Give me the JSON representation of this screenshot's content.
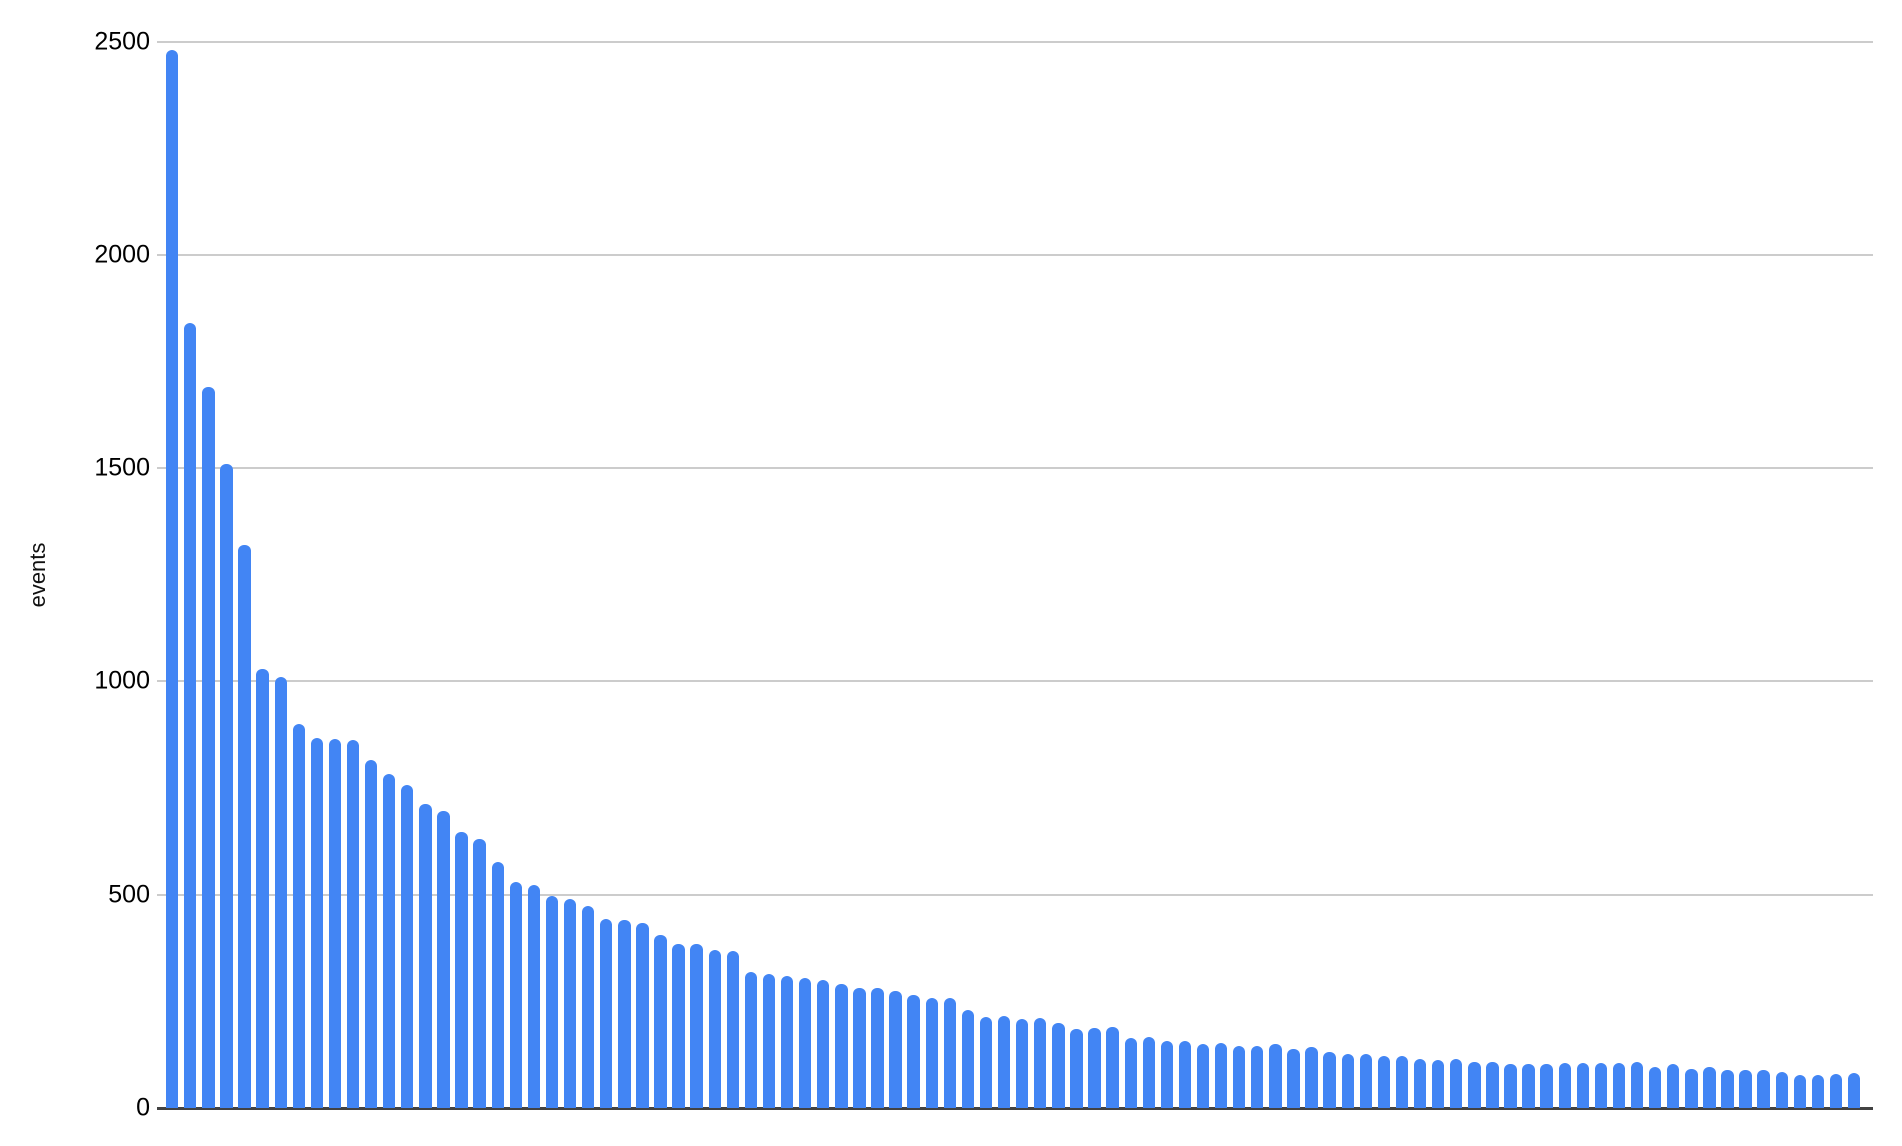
{
  "chart_data": {
    "type": "bar",
    "title": "",
    "xlabel": "",
    "ylabel": "events",
    "ylim": [
      0,
      2500
    ],
    "y_ticks": [
      0,
      500,
      1000,
      1500,
      2000,
      2500
    ],
    "grid": true,
    "legend_position": "none",
    "x_tick_labels": "none (bars unlabeled)",
    "values": [
      2480,
      1840,
      1690,
      1510,
      1320,
      1030,
      1010,
      900,
      868,
      865,
      863,
      815,
      783,
      758,
      713,
      697,
      646,
      630,
      576,
      530,
      523,
      496,
      491,
      473,
      443,
      440,
      434,
      406,
      385,
      384,
      370,
      369,
      320,
      314,
      309,
      305,
      301,
      291,
      282,
      281,
      275,
      266,
      257,
      258,
      230,
      214,
      215,
      209,
      210,
      200,
      186,
      188,
      189,
      164,
      166,
      156,
      158,
      150,
      152,
      145,
      146,
      149,
      139,
      142,
      132,
      127,
      127,
      121,
      123,
      115,
      112,
      114,
      108,
      107,
      104,
      104,
      104,
      106,
      106,
      106,
      106,
      107,
      96,
      104,
      92,
      97,
      89,
      90,
      89,
      85,
      78,
      78,
      80,
      82
    ]
  },
  "colors": {
    "bar": "#4285f4",
    "gridline": "#cccccc",
    "baseline": "#424242",
    "text": "#000000",
    "background": "#ffffff"
  }
}
